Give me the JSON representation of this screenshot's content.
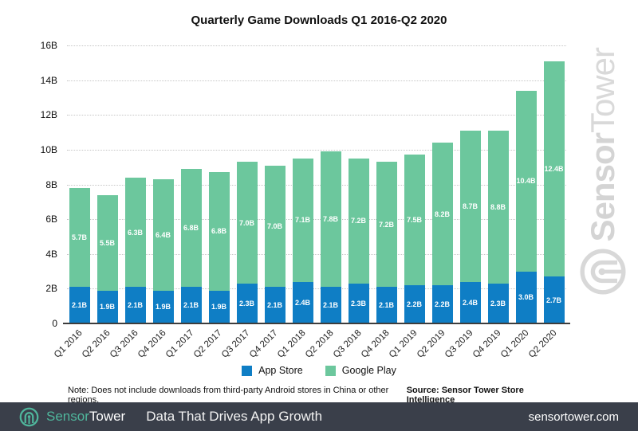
{
  "title": "Quarterly Game Downloads Q1 2016-Q2 2020",
  "chart_data": {
    "type": "bar",
    "stacked": true,
    "title": "Quarterly Game Downloads Q1 2016-Q2 2020",
    "categories": [
      "Q1 2016",
      "Q2 2016",
      "Q3 2016",
      "Q4 2016",
      "Q1 2017",
      "Q2 2017",
      "Q3 2017",
      "Q4 2017",
      "Q1 2018",
      "Q2 2018",
      "Q3 2018",
      "Q4 2018",
      "Q1 2019",
      "Q2 2019",
      "Q3 2019",
      "Q4 2019",
      "Q1 2020",
      "Q2 2020"
    ],
    "series": [
      {
        "name": "App Store",
        "color": "#0f7ec5",
        "values": [
          2.1,
          1.9,
          2.1,
          1.9,
          2.1,
          1.9,
          2.3,
          2.1,
          2.4,
          2.1,
          2.3,
          2.1,
          2.2,
          2.2,
          2.4,
          2.3,
          3.0,
          2.7
        ],
        "labels": [
          "2.1B",
          "1.9B",
          "2.1B",
          "1.9B",
          "2.1B",
          "1.9B",
          "2.3B",
          "2.1B",
          "2.4B",
          "2.1B",
          "2.3B",
          "2.1B",
          "2.2B",
          "2.2B",
          "2.4B",
          "2.3B",
          "3.0B",
          "2.7B"
        ]
      },
      {
        "name": "Google Play",
        "color": "#6cc79d",
        "values": [
          5.7,
          5.5,
          6.3,
          6.4,
          6.8,
          6.8,
          7.0,
          7.0,
          7.1,
          7.8,
          7.2,
          7.2,
          7.5,
          8.2,
          8.7,
          8.8,
          10.4,
          12.4
        ],
        "labels": [
          "5.7B",
          "5.5B",
          "6.3B",
          "6.4B",
          "6.8B",
          "6.8B",
          "7.0B",
          "7.0B",
          "7.1B",
          "7.8B",
          "7.2B",
          "7.2B",
          "7.5B",
          "8.2B",
          "8.7B",
          "8.8B",
          "10.4B",
          "12.4B"
        ]
      }
    ],
    "ylim": [
      0,
      16
    ],
    "yticks": [
      {
        "value": 16,
        "label": "16B"
      },
      {
        "value": 14,
        "label": "14B"
      },
      {
        "value": 12,
        "label": "12B"
      },
      {
        "value": 10,
        "label": "10B"
      },
      {
        "value": 8,
        "label": "8B"
      },
      {
        "value": 6,
        "label": "6B"
      },
      {
        "value": 4,
        "label": "4B"
      },
      {
        "value": 2,
        "label": "2B"
      },
      {
        "value": 0,
        "label": "0"
      }
    ],
    "grid": "horizontal-dotted",
    "legend_position": "bottom"
  },
  "legend": [
    {
      "label": "App Store",
      "color": "#0f7ec5"
    },
    {
      "label": "Google Play",
      "color": "#6cc79d"
    }
  ],
  "note": "Note: Does not include downloads from third-party Android stores in China or other regions.",
  "source": "Source: Sensor Tower Store Intelligence",
  "watermark": {
    "brand_bold": "Sensor",
    "brand_light": "Tower"
  },
  "footer": {
    "brand_first": "Sensor",
    "brand_second": "Tower",
    "tagline": "Data That Drives App Growth",
    "url": "sensortower.com"
  },
  "colors": {
    "app_store": "#0f7ec5",
    "google_play": "#6cc79d",
    "footer_background": "#3a3f4a",
    "brand_teal": "#4fb69c",
    "watermark_gray": "#d8d8d8",
    "axis_line": "#3d3d3d",
    "gridline": "#c6c6c6"
  }
}
